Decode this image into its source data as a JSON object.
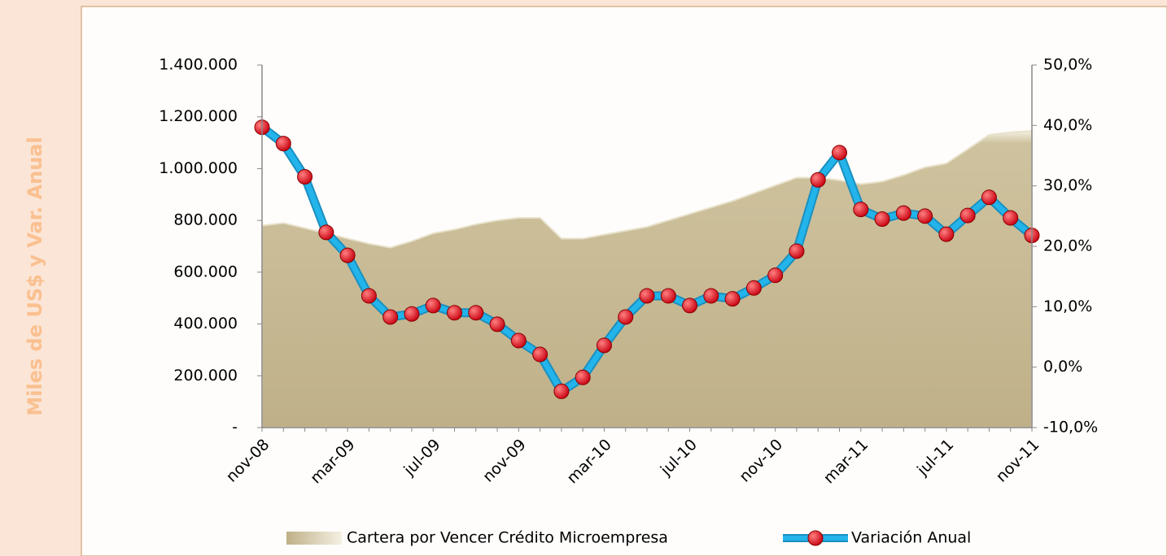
{
  "chart_data": {
    "type": "area_line",
    "y_axis_label": "Miles de US$ y Var. Anual",
    "categories": [
      "nov-08",
      null,
      null,
      null,
      "mar-09",
      null,
      null,
      null,
      "jul-09",
      null,
      null,
      null,
      "nov-09",
      null,
      null,
      null,
      "mar-10",
      null,
      null,
      null,
      "jul-10",
      null,
      null,
      null,
      "nov-10",
      null,
      null,
      null,
      "mar-11",
      null,
      null,
      null,
      "jul-11",
      null,
      null,
      null,
      "nov-11"
    ],
    "series": [
      {
        "name": "Cartera por Vencer Crédito Microempresa",
        "type": "area",
        "color": "#c9bc96",
        "axis": "y",
        "values": [
          780000,
          790000,
          770000,
          750000,
          730000,
          710000,
          695000,
          720000,
          750000,
          765000,
          785000,
          800000,
          810000,
          810000,
          730000,
          730000,
          745000,
          760000,
          775000,
          800000,
          825000,
          850000,
          875000,
          905000,
          935000,
          965000,
          965000,
          955000,
          940000,
          950000,
          975000,
          1005000,
          1020000,
          1075000,
          1130000,
          1140000,
          1145000
        ]
      },
      {
        "name": "Variación Anual",
        "type": "line",
        "color": "#22b4ea",
        "marker_color": "#e3001b",
        "axis": "y2",
        "values": [
          39.7,
          37.0,
          31.5,
          22.3,
          18.5,
          11.8,
          8.3,
          8.8,
          10.2,
          9.0,
          9.0,
          7.1,
          4.4,
          2.1,
          -4.0,
          -1.7,
          3.6,
          8.3,
          11.8,
          11.8,
          10.2,
          11.8,
          11.3,
          13.1,
          15.2,
          19.2,
          31.0,
          35.5,
          26.1,
          24.5,
          25.5,
          25.0,
          22.0,
          25.1,
          28.1,
          24.7,
          21.8
        ]
      }
    ],
    "ylim": [
      0,
      1400000
    ],
    "yticks": [
      {
        "value": 0,
        "label": "-"
      },
      {
        "value": 200000,
        "label": "200.000"
      },
      {
        "value": 400000,
        "label": "400.000"
      },
      {
        "value": 600000,
        "label": "600.000"
      },
      {
        "value": 800000,
        "label": "800.000"
      },
      {
        "value": 1000000,
        "label": "1.000.000"
      },
      {
        "value": 1200000,
        "label": "1.200.000"
      },
      {
        "value": 1400000,
        "label": "1.400.000"
      }
    ],
    "y2lim": [
      -10,
      50
    ],
    "y2ticks": [
      {
        "value": -10,
        "label": "-10,0%"
      },
      {
        "value": 0,
        "label": "0,0%"
      },
      {
        "value": 10,
        "label": "10,0%"
      },
      {
        "value": 20,
        "label": "20,0%"
      },
      {
        "value": 30,
        "label": "30,0%"
      },
      {
        "value": 40,
        "label": "40,0%"
      },
      {
        "value": 50,
        "label": "50,0%"
      }
    ],
    "legend": "bottom"
  }
}
